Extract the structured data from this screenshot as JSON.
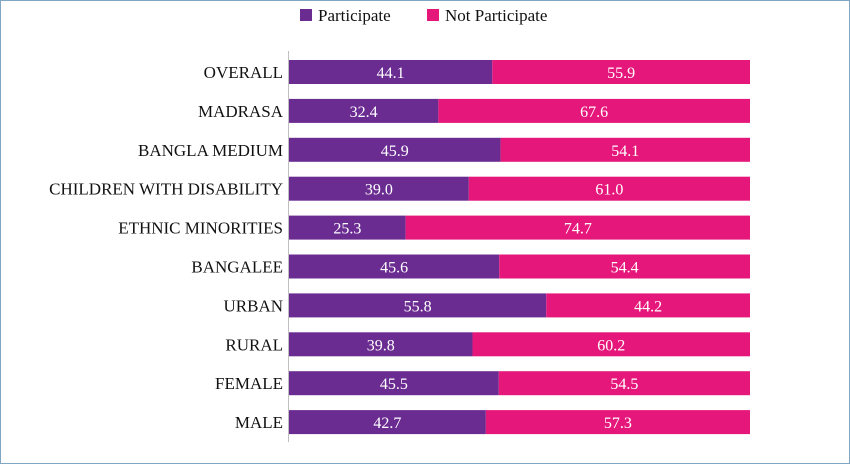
{
  "chart_data": {
    "type": "bar",
    "orientation": "horizontal",
    "stacked": true,
    "categories": [
      "OVERALL",
      "MADRASA",
      "BANGLA MEDIUM",
      "CHILDREN WITH DISABILITY",
      "ETHNIC MINORITIES",
      "BANGALEE",
      "URBAN",
      "RURAL",
      "FEMALE",
      "MALE"
    ],
    "series": [
      {
        "name": "Participate",
        "color": "#6b2c91",
        "values": [
          44.1,
          32.4,
          45.9,
          39.0,
          25.3,
          45.6,
          55.8,
          39.8,
          45.5,
          42.7
        ]
      },
      {
        "name": "Not Participate",
        "color": "#e5177b",
        "values": [
          55.9,
          67.6,
          54.1,
          61.0,
          74.7,
          54.4,
          44.2,
          60.2,
          54.5,
          57.3
        ]
      }
    ],
    "value_labels": {
      "Participate": [
        "44.1",
        "32.4",
        "45.9",
        "39.0",
        "25.3",
        "45.6",
        "55.8",
        "39.8",
        "45.5",
        "42.7"
      ],
      "Not Participate": [
        "55.9",
        "67.6",
        "54.1",
        "61.0",
        "74.7",
        "54.4",
        "44.2",
        "60.2",
        "54.5",
        "57.3"
      ]
    },
    "xlim": [
      0,
      100
    ],
    "legend_position": "top-center",
    "grid": false
  }
}
